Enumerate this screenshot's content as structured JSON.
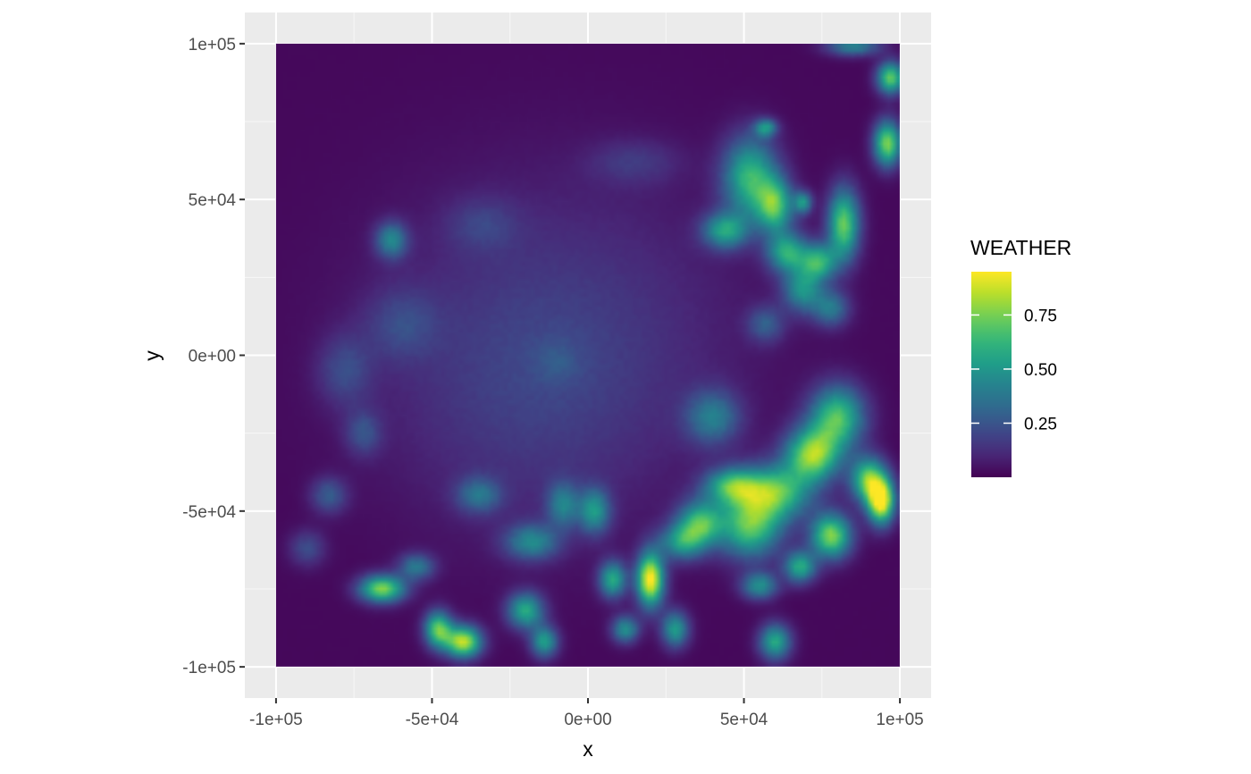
{
  "chart_data": {
    "type": "heatmap",
    "title": "",
    "xlabel": "x",
    "ylabel": "y",
    "xlim": [
      -110000,
      110000
    ],
    "ylim": [
      -110000,
      110000
    ],
    "data_extent": {
      "x": [
        -100000,
        100000
      ],
      "y": [
        -100000,
        100000
      ]
    },
    "x_ticks": [
      {
        "value": -100000,
        "label": "-1e+05"
      },
      {
        "value": -50000,
        "label": "-5e+04"
      },
      {
        "value": 0,
        "label": "0e+00"
      },
      {
        "value": 50000,
        "label": "5e+04"
      },
      {
        "value": 100000,
        "label": "1e+05"
      }
    ],
    "y_ticks": [
      {
        "value": -100000,
        "label": "-1e+05"
      },
      {
        "value": -50000,
        "label": "-5e+04"
      },
      {
        "value": 0,
        "label": "0e+00"
      },
      {
        "value": 50000,
        "label": "5e+04"
      },
      {
        "value": 100000,
        "label": "1e+05"
      }
    ],
    "grid": true,
    "colorscale": "viridis",
    "color_range": [
      0,
      0.95
    ],
    "legend": {
      "title": "WEATHER",
      "position": "right",
      "ticks": [
        {
          "value": 0.25,
          "label": "0.25"
        },
        {
          "value": 0.5,
          "label": "0.50"
        },
        {
          "value": 0.75,
          "label": "0.75"
        }
      ]
    },
    "field": {
      "base": 0.02,
      "description_free": true,
      "blobs": [
        {
          "x": -8000,
          "y": 8000,
          "sx": 40000,
          "sy": 36000,
          "v": 0.12
        },
        {
          "x": -20000,
          "y": -15000,
          "sx": 30000,
          "sy": 30000,
          "v": 0.08
        },
        {
          "x": -10000,
          "y": -2000,
          "sx": 5000,
          "sy": 5000,
          "v": 0.08
        },
        {
          "x": -63000,
          "y": 37000,
          "sx": 3500,
          "sy": 4000,
          "v": 0.4
        },
        {
          "x": -78000,
          "y": -5000,
          "sx": 6000,
          "sy": 8000,
          "v": 0.18
        },
        {
          "x": -60000,
          "y": 10000,
          "sx": 8000,
          "sy": 8000,
          "v": 0.15
        },
        {
          "x": -34000,
          "y": 42000,
          "sx": 8000,
          "sy": 6000,
          "v": 0.12
        },
        {
          "x": 15000,
          "y": 62000,
          "sx": 10000,
          "sy": 5000,
          "v": 0.12
        },
        {
          "x": 52000,
          "y": 57000,
          "sx": 6000,
          "sy": 9000,
          "v": 0.6
        },
        {
          "x": 60000,
          "y": 48000,
          "sx": 4000,
          "sy": 6000,
          "v": 0.6
        },
        {
          "x": 64000,
          "y": 33000,
          "sx": 4500,
          "sy": 4500,
          "v": 0.55
        },
        {
          "x": 44000,
          "y": 40000,
          "sx": 5000,
          "sy": 4000,
          "v": 0.5
        },
        {
          "x": 82000,
          "y": 42000,
          "sx": 3500,
          "sy": 8000,
          "v": 0.7
        },
        {
          "x": 74000,
          "y": 30000,
          "sx": 4000,
          "sy": 4000,
          "v": 0.55
        },
        {
          "x": 69000,
          "y": 21000,
          "sx": 4500,
          "sy": 5000,
          "v": 0.45
        },
        {
          "x": 78000,
          "y": 15000,
          "sx": 4000,
          "sy": 4000,
          "v": 0.35
        },
        {
          "x": 97000,
          "y": 89000,
          "sx": 3000,
          "sy": 3500,
          "v": 0.7
        },
        {
          "x": 96000,
          "y": 68000,
          "sx": 3000,
          "sy": 5000,
          "v": 0.75
        },
        {
          "x": 85000,
          "y": 99000,
          "sx": 6000,
          "sy": 2000,
          "v": 0.4
        },
        {
          "x": 57000,
          "y": 73000,
          "sx": 2500,
          "sy": 2000,
          "v": 0.45
        },
        {
          "x": 69000,
          "y": 49000,
          "sx": 2000,
          "sy": 2500,
          "v": 0.45
        },
        {
          "x": 57000,
          "y": 10000,
          "sx": 4000,
          "sy": 4000,
          "v": 0.25
        },
        {
          "x": 80000,
          "y": -20000,
          "sx": 6000,
          "sy": 7000,
          "v": 0.65
        },
        {
          "x": 72000,
          "y": -32000,
          "sx": 6000,
          "sy": 6000,
          "v": 0.75
        },
        {
          "x": 60000,
          "y": -44000,
          "sx": 8000,
          "sy": 6000,
          "v": 0.65
        },
        {
          "x": 46000,
          "y": -42000,
          "sx": 6000,
          "sy": 4000,
          "v": 0.55
        },
        {
          "x": 52000,
          "y": -55000,
          "sx": 7000,
          "sy": 7000,
          "v": 0.65
        },
        {
          "x": 36000,
          "y": -54000,
          "sx": 5000,
          "sy": 5000,
          "v": 0.6
        },
        {
          "x": 94000,
          "y": -47000,
          "sx": 3000,
          "sy": 5000,
          "v": 0.95
        },
        {
          "x": 90000,
          "y": -40000,
          "sx": 4000,
          "sy": 5000,
          "v": 0.7
        },
        {
          "x": 78000,
          "y": -58000,
          "sx": 4500,
          "sy": 5000,
          "v": 0.75
        },
        {
          "x": 68000,
          "y": -68000,
          "sx": 3500,
          "sy": 3500,
          "v": 0.55
        },
        {
          "x": 20000,
          "y": -72000,
          "sx": 3000,
          "sy": 6000,
          "v": 0.95
        },
        {
          "x": 8000,
          "y": -72000,
          "sx": 3000,
          "sy": 4000,
          "v": 0.55
        },
        {
          "x": 2000,
          "y": -50000,
          "sx": 3500,
          "sy": 5000,
          "v": 0.45
        },
        {
          "x": -8000,
          "y": -48000,
          "sx": 3500,
          "sy": 5000,
          "v": 0.35
        },
        {
          "x": -18000,
          "y": -60000,
          "sx": 6000,
          "sy": 4000,
          "v": 0.4
        },
        {
          "x": -40000,
          "y": -92000,
          "sx": 4000,
          "sy": 3500,
          "v": 0.85
        },
        {
          "x": -48000,
          "y": -88000,
          "sx": 3000,
          "sy": 4000,
          "v": 0.7
        },
        {
          "x": -66000,
          "y": -75000,
          "sx": 5000,
          "sy": 3000,
          "v": 0.75
        },
        {
          "x": -55000,
          "y": -68000,
          "sx": 4000,
          "sy": 3000,
          "v": 0.35
        },
        {
          "x": -20000,
          "y": -82000,
          "sx": 4000,
          "sy": 4000,
          "v": 0.55
        },
        {
          "x": -14000,
          "y": -92000,
          "sx": 3000,
          "sy": 3500,
          "v": 0.5
        },
        {
          "x": 12000,
          "y": -88000,
          "sx": 3000,
          "sy": 3000,
          "v": 0.45
        },
        {
          "x": 28000,
          "y": -88000,
          "sx": 3000,
          "sy": 4000,
          "v": 0.5
        },
        {
          "x": 60000,
          "y": -92000,
          "sx": 3500,
          "sy": 4000,
          "v": 0.55
        },
        {
          "x": 55000,
          "y": -74000,
          "sx": 4000,
          "sy": 3000,
          "v": 0.45
        },
        {
          "x": -35000,
          "y": -45000,
          "sx": 5000,
          "sy": 4000,
          "v": 0.3
        },
        {
          "x": -83000,
          "y": -45000,
          "sx": 4000,
          "sy": 4000,
          "v": 0.25
        },
        {
          "x": -90000,
          "y": -62000,
          "sx": 4000,
          "sy": 4000,
          "v": 0.2
        },
        {
          "x": -72000,
          "y": -25000,
          "sx": 4000,
          "sy": 5000,
          "v": 0.2
        },
        {
          "x": 40000,
          "y": -20000,
          "sx": 6000,
          "sy": 6000,
          "v": 0.35
        },
        {
          "x": 30000,
          "y": -60000,
          "sx": 5000,
          "sy": 4000,
          "v": 0.45
        }
      ]
    }
  }
}
